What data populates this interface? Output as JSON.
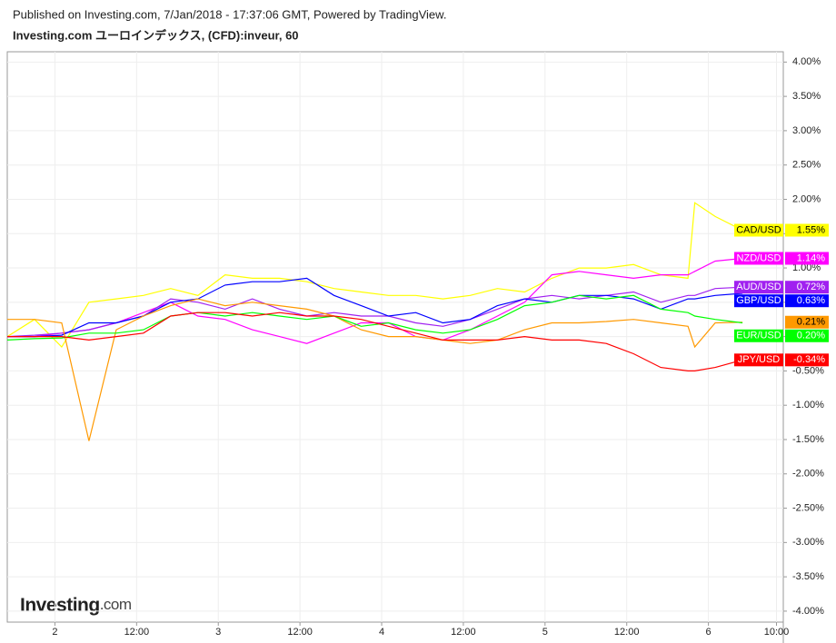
{
  "published": "Published on Investing.com, 7/Jan/2018 - 17:37:06 GMT, Powered by TradingView.",
  "logo": {
    "brand": "Investing",
    "suffix": ".com"
  },
  "chart_data": {
    "type": "line",
    "title": "Investing.com ユーロインデックス, (CFD):inveur, 60",
    "x": [
      0,
      4,
      8,
      12,
      16,
      20,
      24,
      28,
      32,
      36,
      40,
      44,
      48,
      52,
      56,
      60,
      64,
      68,
      72,
      76,
      80,
      84,
      88,
      92,
      96,
      100,
      101,
      104,
      108
    ],
    "xlim": [
      0,
      114
    ],
    "xticks": [
      {
        "value": 7,
        "label": "2"
      },
      {
        "value": 19,
        "label": "12:00"
      },
      {
        "value": 31,
        "label": "3"
      },
      {
        "value": 43,
        "label": "12:00"
      },
      {
        "value": 55,
        "label": "4"
      },
      {
        "value": 67,
        "label": "12:00"
      },
      {
        "value": 79,
        "label": "5"
      },
      {
        "value": 91,
        "label": "12:00"
      },
      {
        "value": 103,
        "label": "6"
      },
      {
        "value": 113,
        "label": "10:00"
      }
    ],
    "ylim": [
      -4.16,
      4.15
    ],
    "yticks": [
      {
        "value": 4,
        "label": "4.00%"
      },
      {
        "value": 3.5,
        "label": "3.50%"
      },
      {
        "value": 3,
        "label": "3.00%"
      },
      {
        "value": 2.5,
        "label": "2.50%"
      },
      {
        "value": 2,
        "label": "2.00%"
      },
      {
        "value": 1.5,
        "label": "1.50%"
      },
      {
        "value": 1,
        "label": "1.00%"
      },
      {
        "value": 0.5,
        "label": "0.50%"
      },
      {
        "value": 0,
        "label": "0.00%"
      },
      {
        "value": -0.5,
        "label": "-0.50%"
      },
      {
        "value": -1,
        "label": "-1.00%"
      },
      {
        "value": -1.5,
        "label": "-1.50%"
      },
      {
        "value": -2,
        "label": "-2.00%"
      },
      {
        "value": -2.5,
        "label": "-2.50%"
      },
      {
        "value": -3,
        "label": "-3.00%"
      },
      {
        "value": -3.5,
        "label": "-3.50%"
      },
      {
        "value": -4,
        "label": "-4.00%"
      }
    ],
    "grid": true,
    "series": [
      {
        "name": "CAD/USD",
        "color": "#ffff00",
        "last_label": "1.55%",
        "values": [
          0,
          0.25,
          -0.15,
          0.5,
          0.55,
          0.6,
          0.7,
          0.6,
          0.9,
          0.85,
          0.85,
          0.8,
          0.7,
          0.65,
          0.6,
          0.6,
          0.55,
          0.6,
          0.7,
          0.65,
          0.85,
          1.0,
          1.0,
          1.05,
          0.9,
          0.85,
          1.95,
          1.75,
          1.55
        ]
      },
      {
        "name": "NZD/USD",
        "color": "#ff00ff",
        "last_label": "1.14%",
        "values": [
          0,
          0,
          0.05,
          0.1,
          0.2,
          0.35,
          0.5,
          0.3,
          0.25,
          0.1,
          0,
          -0.1,
          0.05,
          0.2,
          0.2,
          0,
          -0.05,
          0.1,
          0.3,
          0.5,
          0.9,
          0.95,
          0.9,
          0.85,
          0.9,
          0.9,
          0.95,
          1.1,
          1.14
        ]
      },
      {
        "name": "AUD/USD",
        "color": "#a020f0",
        "last_label": "0.72%",
        "values": [
          0,
          0.02,
          0.05,
          0.1,
          0.2,
          0.3,
          0.55,
          0.5,
          0.4,
          0.55,
          0.4,
          0.3,
          0.35,
          0.3,
          0.3,
          0.2,
          0.15,
          0.25,
          0.4,
          0.55,
          0.6,
          0.55,
          0.6,
          0.65,
          0.5,
          0.6,
          0.6,
          0.7,
          0.72
        ]
      },
      {
        "name": "GBP/USD",
        "color": "#0000ff",
        "last_label": "0.63%",
        "values": [
          0,
          0,
          0.02,
          0.2,
          0.2,
          0.3,
          0.5,
          0.55,
          0.75,
          0.8,
          0.8,
          0.85,
          0.6,
          0.45,
          0.3,
          0.35,
          0.2,
          0.25,
          0.45,
          0.55,
          0.5,
          0.6,
          0.6,
          0.55,
          0.4,
          0.55,
          0.55,
          0.6,
          0.63
        ]
      },
      {
        "color": "#ff9900",
        "last_label": "0.21%",
        "values": [
          0.25,
          0.25,
          0.2,
          -1.52,
          0.1,
          0.3,
          0.45,
          0.55,
          0.45,
          0.5,
          0.45,
          0.4,
          0.3,
          0.1,
          0,
          0,
          -0.05,
          -0.1,
          -0.05,
          0.1,
          0.2,
          0.2,
          0.22,
          0.25,
          0.2,
          0.15,
          -0.15,
          0.2,
          0.21
        ]
      },
      {
        "name": "EUR/USD",
        "color": "#00ff00",
        "last_label": "0.20%",
        "values": [
          -0.05,
          -0.03,
          -0.02,
          0.05,
          0.05,
          0.1,
          0.3,
          0.35,
          0.3,
          0.35,
          0.3,
          0.25,
          0.3,
          0.15,
          0.2,
          0.1,
          0.05,
          0.1,
          0.25,
          0.45,
          0.5,
          0.6,
          0.55,
          0.6,
          0.4,
          0.35,
          0.3,
          0.25,
          0.2
        ]
      },
      {
        "name": "JPY/USD",
        "color": "#ff0000",
        "last_label": "-0.34%",
        "values": [
          0,
          0,
          0,
          -0.05,
          0,
          0.05,
          0.3,
          0.35,
          0.35,
          0.3,
          0.35,
          0.3,
          0.3,
          0.25,
          0.15,
          0.05,
          -0.05,
          -0.05,
          -0.05,
          0,
          -0.05,
          -0.05,
          -0.1,
          -0.25,
          -0.45,
          -0.5,
          -0.5,
          -0.45,
          -0.34
        ]
      }
    ]
  }
}
